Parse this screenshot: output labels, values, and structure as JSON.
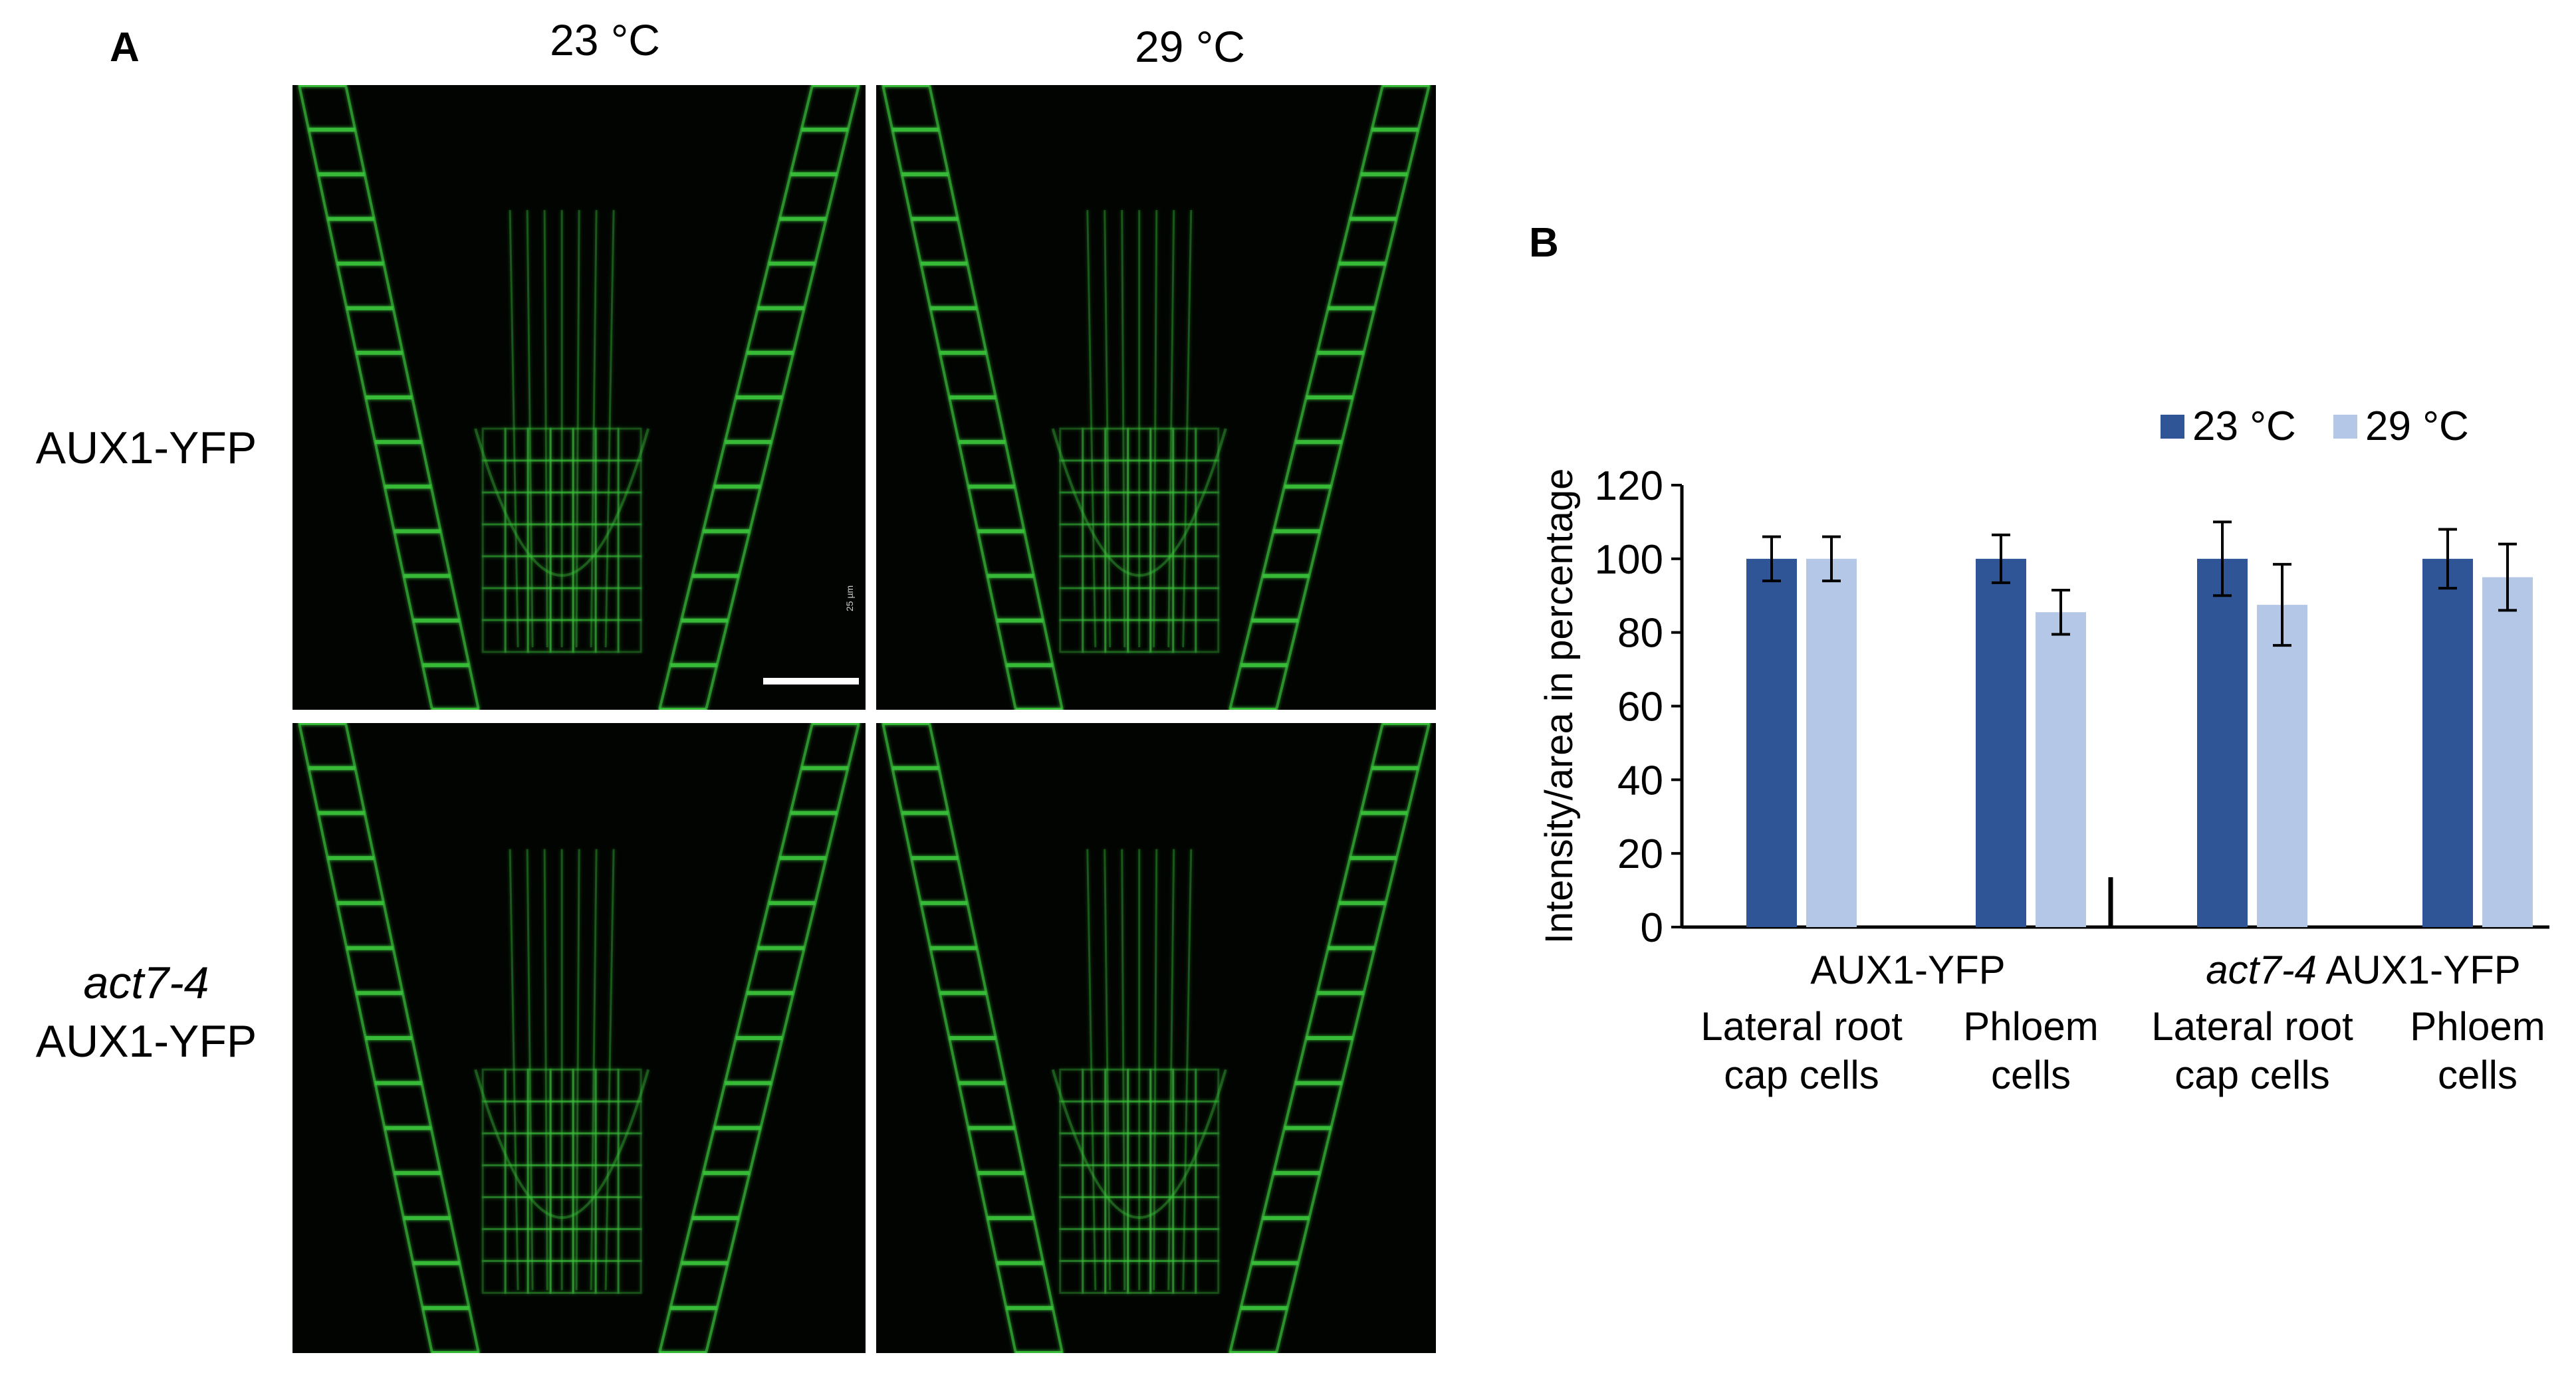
{
  "figure": {
    "panel_a_label": "A",
    "panel_b_label": "B",
    "columns": [
      "23 °C",
      "29 °C"
    ],
    "rows": [
      {
        "line1": "AUX1-YFP",
        "line2": "",
        "italic_line": ""
      },
      {
        "line1": "",
        "line2": "AUX1-YFP",
        "italic_line": "act7-4"
      }
    ],
    "scale_bar_caption": "25 µm",
    "colors": {
      "micrograph_background": "#020402",
      "fluorescence": "#39c23a"
    }
  },
  "chart_data": {
    "type": "bar",
    "ylabel": "Intensity/area in percentage",
    "xlabel": "",
    "ylim": [
      0,
      120
    ],
    "yticks": [
      0,
      20,
      40,
      60,
      80,
      100,
      120
    ],
    "legend_position": "top-right",
    "legend": [
      {
        "label": "23 °C",
        "color": "#2f5597"
      },
      {
        "label": "29 °C",
        "color": "#b4c7e7"
      }
    ],
    "groups": [
      {
        "name": "AUX1-YFP",
        "name_italic": "",
        "name_rest": "AUX1-YFP"
      },
      {
        "name": "act7-4 AUX1-YFP",
        "name_italic": "act7-4",
        "name_rest": " AUX1-YFP"
      }
    ],
    "categories": [
      {
        "line1": "Lateral root",
        "line2": "cap cells",
        "group": 0
      },
      {
        "line1": "Phloem",
        "line2": "cells",
        "group": 0
      },
      {
        "line1": "Lateral root",
        "line2": "cap cells",
        "group": 1
      },
      {
        "line1": "Phloem",
        "line2": "cells",
        "group": 1
      }
    ],
    "series": [
      {
        "name": "23 °C",
        "color": "#2f5597",
        "values": [
          100,
          100,
          100,
          100
        ],
        "errors": [
          6,
          6.5,
          10,
          8
        ]
      },
      {
        "name": "29 °C",
        "color": "#b4c7e7",
        "values": [
          100,
          85.5,
          87.5,
          95
        ],
        "errors": [
          6,
          6,
          11,
          9
        ]
      }
    ],
    "grid": false
  }
}
